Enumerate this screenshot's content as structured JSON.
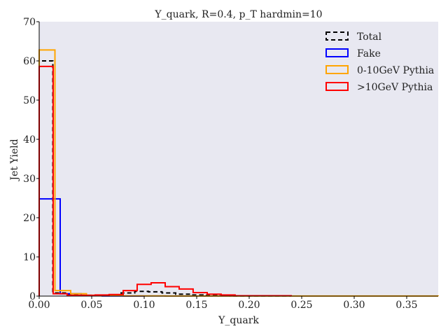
{
  "chart_data": {
    "type": "histogram",
    "title": "Y_quark, R=0.4, p_T hardmin=10",
    "xlabel": "Y_quark",
    "ylabel": "Jet Yield",
    "xlim": [
      0.0,
      0.38
    ],
    "ylim": [
      0,
      70
    ],
    "xticks": [
      0.0,
      0.05,
      0.1,
      0.15,
      0.2,
      0.25,
      0.3,
      0.35
    ],
    "xtick_labels": [
      "0.00",
      "0.05",
      "0.10",
      "0.15",
      "0.20",
      "0.25",
      "0.30",
      "0.35"
    ],
    "yticks": [
      0,
      10,
      20,
      30,
      40,
      50,
      60,
      70
    ],
    "ytick_labels": [
      "0",
      "10",
      "20",
      "30",
      "40",
      "50",
      "60",
      "70"
    ],
    "background": "#e8e8f1",
    "grid": false,
    "legend_position": "top-right",
    "series": [
      {
        "name": "Total",
        "color": "#000000",
        "dashed": true,
        "edges": [
          0.0,
          0.013,
          0.026,
          0.039,
          0.052,
          0.065,
          0.078,
          0.091,
          0.104,
          0.117,
          0.13,
          0.143,
          0.156,
          0.169,
          0.182,
          0.24
        ],
        "values": [
          60,
          0.8,
          0.3,
          0.2,
          0.2,
          0.3,
          0.8,
          1.2,
          1.1,
          0.8,
          0.5,
          0.3,
          0.2,
          0.1,
          0.05
        ]
      },
      {
        "name": "Fake",
        "color": "#0000ff",
        "dashed": false,
        "edges": [
          0.0,
          0.02,
          0.04,
          0.06,
          0.08,
          0.1
        ],
        "values": [
          24.8,
          0.6,
          0.1,
          0.05,
          0.02
        ]
      },
      {
        "name": "0-10GeV Pythia",
        "color": "#ffa500",
        "dashed": false,
        "edges": [
          0.0,
          0.015,
          0.03,
          0.045,
          0.06,
          0.08,
          0.12,
          0.2,
          0.3,
          0.38
        ],
        "values": [
          62.8,
          1.4,
          0.6,
          0.2,
          0.1,
          0.05,
          0.03,
          0.02,
          0.02
        ]
      },
      {
        "name": ">10GeV Pythia",
        "color": "#ff0000",
        "dashed": false,
        "edges": [
          0.0,
          0.0133,
          0.0266,
          0.04,
          0.0533,
          0.0666,
          0.08,
          0.0933,
          0.1066,
          0.12,
          0.1333,
          0.1466,
          0.16,
          0.1733,
          0.1866,
          0.2,
          0.24
        ],
        "values": [
          58.6,
          0.6,
          0.2,
          0.2,
          0.3,
          0.4,
          1.4,
          3.0,
          3.4,
          2.4,
          1.8,
          0.9,
          0.5,
          0.3,
          0.1,
          0.1
        ]
      }
    ]
  }
}
